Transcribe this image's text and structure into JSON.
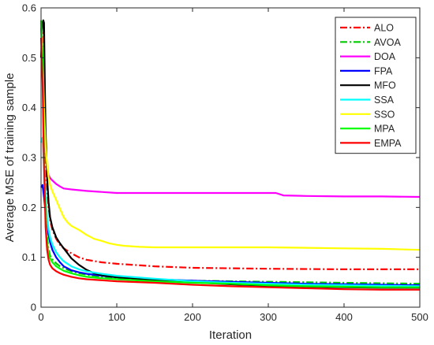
{
  "chart_data": {
    "type": "line",
    "xlabel": "Iteration",
    "ylabel": "Average MSE of training sample",
    "xlim": [
      0,
      500
    ],
    "ylim": [
      0,
      0.6
    ],
    "xticks": [
      "0",
      "100",
      "200",
      "300",
      "400",
      "500"
    ],
    "yticks": [
      "0",
      "0.1",
      "0.2",
      "0.3",
      "0.4",
      "0.5",
      "0.6"
    ],
    "grid": false,
    "legend_position": "top-right",
    "series": [
      {
        "name": "ALO",
        "color": "#ff0000",
        "dash": "dashdot",
        "x": [
          0,
          2,
          4,
          6,
          8,
          10,
          12,
          15,
          20,
          25,
          30,
          40,
          50,
          60,
          80,
          100,
          150,
          200,
          300,
          400,
          500
        ],
        "y": [
          0.57,
          0.55,
          0.45,
          0.32,
          0.24,
          0.2,
          0.175,
          0.155,
          0.137,
          0.125,
          0.118,
          0.108,
          0.1,
          0.095,
          0.09,
          0.087,
          0.082,
          0.079,
          0.077,
          0.076,
          0.076
        ]
      },
      {
        "name": "AVOA",
        "color": "#00cc00",
        "dash": "dashdot",
        "x": [
          0,
          2,
          4,
          6,
          8,
          10,
          12,
          15,
          20,
          25,
          30,
          40,
          50,
          60,
          80,
          100,
          150,
          200,
          250,
          300,
          350,
          400,
          450,
          500
        ],
        "y": [
          0.57,
          0.5,
          0.32,
          0.2,
          0.14,
          0.115,
          0.103,
          0.096,
          0.088,
          0.082,
          0.078,
          0.072,
          0.068,
          0.065,
          0.061,
          0.058,
          0.055,
          0.053,
          0.052,
          0.051,
          0.05,
          0.049,
          0.048,
          0.047
        ]
      },
      {
        "name": "DOA",
        "color": "#ff00ff",
        "dash": "solid",
        "x": [
          0,
          2,
          4,
          6,
          8,
          10,
          12,
          15,
          20,
          25,
          30,
          40,
          60,
          80,
          100,
          150,
          200,
          250,
          300,
          310,
          320,
          350,
          400,
          450,
          500
        ],
        "y": [
          0.56,
          0.5,
          0.39,
          0.31,
          0.28,
          0.265,
          0.259,
          0.254,
          0.247,
          0.242,
          0.238,
          0.236,
          0.233,
          0.231,
          0.229,
          0.229,
          0.229,
          0.229,
          0.229,
          0.229,
          0.224,
          0.223,
          0.222,
          0.222,
          0.221
        ]
      },
      {
        "name": "FPA",
        "color": "#0000ff",
        "dash": "solid",
        "x": [
          0,
          2,
          4,
          6,
          8,
          10,
          12,
          15,
          20,
          25,
          30,
          40,
          50,
          60,
          80,
          100,
          150,
          200,
          250,
          300,
          350,
          400,
          450,
          500
        ],
        "y": [
          0.24,
          0.245,
          0.22,
          0.19,
          0.165,
          0.145,
          0.13,
          0.115,
          0.1,
          0.09,
          0.082,
          0.074,
          0.07,
          0.067,
          0.063,
          0.06,
          0.056,
          0.053,
          0.051,
          0.049,
          0.047,
          0.046,
          0.045,
          0.044
        ]
      },
      {
        "name": "MFO",
        "color": "#000000",
        "dash": "solid",
        "x": [
          0,
          2,
          3,
          4,
          5,
          6,
          8,
          10,
          12,
          15,
          20,
          25,
          30,
          35,
          40,
          50,
          60,
          70,
          80,
          100,
          150,
          200,
          250,
          300,
          350,
          400,
          450,
          500
        ],
        "y": [
          0.5,
          0.57,
          0.575,
          0.57,
          0.45,
          0.35,
          0.26,
          0.21,
          0.18,
          0.16,
          0.14,
          0.128,
          0.118,
          0.108,
          0.098,
          0.085,
          0.075,
          0.068,
          0.064,
          0.06,
          0.055,
          0.05,
          0.046,
          0.043,
          0.041,
          0.04,
          0.039,
          0.039
        ]
      },
      {
        "name": "SSA",
        "color": "#00ffff",
        "dash": "solid",
        "x": [
          0,
          2,
          4,
          6,
          8,
          10,
          12,
          15,
          20,
          25,
          30,
          40,
          50,
          60,
          80,
          100,
          150,
          200,
          250,
          300,
          350,
          400,
          450,
          500
        ],
        "y": [
          0.33,
          0.34,
          0.28,
          0.22,
          0.18,
          0.155,
          0.14,
          0.125,
          0.11,
          0.1,
          0.092,
          0.082,
          0.076,
          0.072,
          0.067,
          0.063,
          0.057,
          0.052,
          0.049,
          0.047,
          0.045,
          0.044,
          0.043,
          0.042
        ]
      },
      {
        "name": "SSO",
        "color": "#ffff00",
        "dash": "solid",
        "x": [
          0,
          2,
          4,
          6,
          8,
          10,
          12,
          15,
          20,
          25,
          30,
          35,
          40,
          50,
          60,
          70,
          80,
          90,
          100,
          110,
          130,
          150,
          200,
          250,
          300,
          350,
          400,
          450,
          500
        ],
        "y": [
          0.575,
          0.52,
          0.4,
          0.32,
          0.285,
          0.26,
          0.245,
          0.232,
          0.215,
          0.197,
          0.18,
          0.17,
          0.163,
          0.155,
          0.145,
          0.137,
          0.133,
          0.128,
          0.125,
          0.123,
          0.121,
          0.12,
          0.12,
          0.12,
          0.12,
          0.119,
          0.118,
          0.117,
          0.115
        ]
      },
      {
        "name": "MPA",
        "color": "#00ff00",
        "dash": "solid",
        "x": [
          0,
          2,
          4,
          6,
          8,
          10,
          12,
          15,
          20,
          25,
          30,
          40,
          50,
          60,
          80,
          100,
          150,
          200,
          250,
          300,
          350,
          400,
          450,
          500
        ],
        "y": [
          0.575,
          0.5,
          0.3,
          0.18,
          0.13,
          0.108,
          0.098,
          0.09,
          0.082,
          0.077,
          0.073,
          0.068,
          0.064,
          0.061,
          0.058,
          0.056,
          0.052,
          0.049,
          0.047,
          0.044,
          0.042,
          0.041,
          0.04,
          0.04
        ]
      },
      {
        "name": "EMPA",
        "color": "#ff0000",
        "dash": "solid",
        "x": [
          0,
          2,
          4,
          6,
          8,
          10,
          12,
          15,
          20,
          25,
          30,
          40,
          50,
          60,
          80,
          100,
          150,
          200,
          250,
          300,
          350,
          400,
          450,
          500
        ],
        "y": [
          0.54,
          0.45,
          0.28,
          0.16,
          0.115,
          0.095,
          0.085,
          0.078,
          0.072,
          0.068,
          0.065,
          0.061,
          0.058,
          0.056,
          0.054,
          0.052,
          0.049,
          0.045,
          0.042,
          0.04,
          0.038,
          0.036,
          0.035,
          0.035
        ]
      }
    ]
  }
}
